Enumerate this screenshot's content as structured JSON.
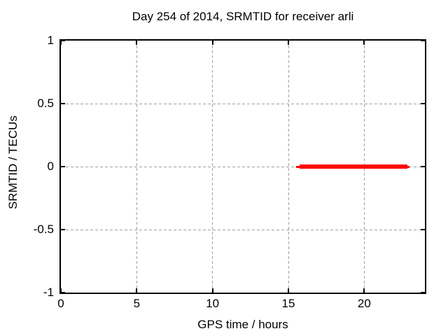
{
  "chart_data": {
    "type": "line",
    "title": "Day 254 of 2014, SRMTID for receiver arli",
    "xlabel": "GPS time / hours",
    "ylabel": "SRMTID / TECUs",
    "xlim": [
      0,
      24
    ],
    "ylim": [
      -1,
      1
    ],
    "x_ticks": [
      0,
      5,
      10,
      15,
      20
    ],
    "y_ticks": [
      -1,
      -0.5,
      0,
      0.5,
      1
    ],
    "grid": true,
    "legend_position": "none",
    "background_color": "#ffffff",
    "grid_color": "#a0a0a0",
    "axis_color": "#000000",
    "series": [
      {
        "name": "SRMTID",
        "color": "#ff0000",
        "style": "thick-horizontal-line",
        "segments": [
          {
            "x_start": 15.5,
            "x_end": 23.0,
            "y": 0,
            "thickness_px": 3
          },
          {
            "x_start": 15.75,
            "x_end": 22.85,
            "y": 0,
            "thickness_px": 6
          }
        ]
      }
    ]
  }
}
